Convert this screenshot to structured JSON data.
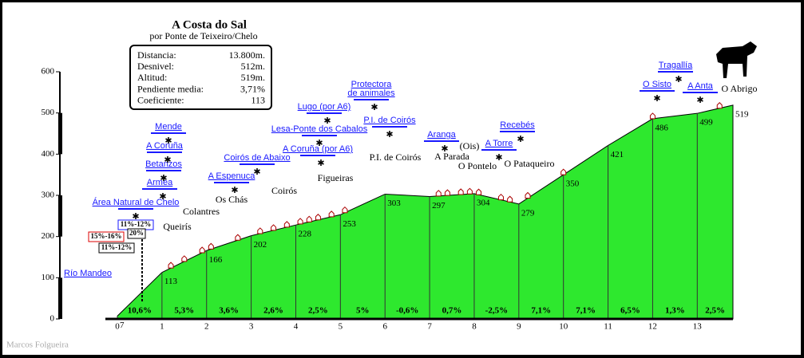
{
  "chart_data": {
    "type": "area",
    "title": "A Costa do Sal",
    "subtitle": "por Ponte de Teixeiro/Chelo",
    "info": [
      [
        "Distancia:",
        "13.800m."
      ],
      [
        "Desnivel:",
        "512m."
      ],
      [
        "Altitud:",
        "519m."
      ],
      [
        "Pendiente media:",
        "3,71%"
      ],
      [
        "Coeficiente:",
        "113"
      ]
    ],
    "x": [
      0,
      1,
      2,
      3,
      4,
      5,
      6,
      7,
      8,
      9,
      10,
      11,
      12,
      13,
      13.8
    ],
    "values": [
      7,
      113,
      166,
      202,
      228,
      253,
      303,
      297,
      304,
      279,
      350,
      421,
      486,
      499,
      519
    ],
    "color": "#2ee82e",
    "xlim": [
      0,
      13.8
    ],
    "xticks": [
      0,
      1,
      2,
      3,
      4,
      5,
      6,
      7,
      8,
      9,
      10,
      11,
      12,
      13
    ],
    "ylim": [
      0,
      600
    ],
    "yticks": [
      0,
      100,
      200,
      300,
      400,
      500,
      600
    ],
    "gradients": [
      "10,6%",
      "5,3%",
      "3,6%",
      "2,6%",
      "2,5%",
      "5%",
      "-0,6%",
      "0,7%",
      "-2,5%",
      "7,1%",
      "7,1%",
      "6,5%",
      "1,3%",
      "2,5%"
    ],
    "landmarks": [
      "Río Mandeo",
      "Área Natural de Chelo",
      "Armea",
      "Betanzos",
      "A Coruña",
      "Mende",
      "A Espenuca",
      "Coirós de Abaixo",
      "A Coruña (por A6)",
      "Lesa-Ponte dos Cabalos",
      "Lugo (por A6)",
      "Protectora",
      "de animales",
      "P.I. de Coirós",
      "Aranga",
      "A Torre",
      "Recebés",
      "O Sisto",
      "Tragallía",
      "A Anta"
    ],
    "places": [
      "Queirís",
      "Colantres",
      "Os Chás",
      "Coirós",
      "Figueiras",
      "P.I. de Coirós",
      "A Parada",
      "O Pontelo",
      "(Ois)",
      "O Pataqueiro",
      "O Abrigo"
    ],
    "steep": [
      "11%-12%",
      "20%",
      "15%-16%",
      "11%-12%"
    ],
    "author": "Marcos Folgueira"
  }
}
